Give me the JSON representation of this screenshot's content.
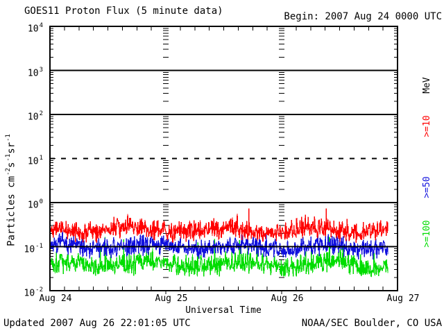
{
  "header": {
    "title": "GOES11 Proton Flux (5 minute data)",
    "begin": "Begin: 2007 Aug 24 0000 UTC"
  },
  "footer": {
    "updated": "Updated 2007 Aug 26 22:01:05 UTC",
    "source": "NOAA/SEC Boulder, CO USA"
  },
  "chart_data": {
    "type": "line",
    "title": "GOES11 Proton Flux (5 minute data)",
    "xlabel": "Universal Time",
    "ylabel": "Particles cm-2s-1sr-1",
    "ylabel_segments": [
      {
        "t": "Particles cm"
      },
      {
        "t": "-2",
        "sup": true
      },
      {
        "t": "s"
      },
      {
        "t": "-1",
        "sup": true
      },
      {
        "t": "sr"
      },
      {
        "t": "-1",
        "sup": true
      }
    ],
    "x_start": "2007 Aug 24 0000 UTC",
    "x_end": "2007 Aug 27 0000 UTC",
    "x_tick_labels": [
      "Aug 24",
      "Aug 25",
      "Aug 26",
      "Aug 27"
    ],
    "x_minor_tick_hours": 3,
    "sample_interval_minutes": 5,
    "data_end": "2007 Aug 26 2200 UTC",
    "y_scale": "log",
    "ylim": [
      0.01,
      10000
    ],
    "y_tick_exponents": [
      4,
      3,
      2,
      1,
      0,
      -1,
      -2
    ],
    "grid": {
      "solid_at": [
        1000,
        100,
        1,
        0.1
      ],
      "dashed_at": [
        10
      ]
    },
    "legend": {
      "title": "MeV",
      "position": "right",
      "entries": [
        {
          "label": ">=10",
          "color": "#ff0000"
        },
        {
          "label": ">=50",
          "color": "#1111dd"
        },
        {
          "label": ">=100",
          "color": "#00dd00"
        }
      ]
    },
    "series": [
      {
        "name": ">=10 MeV protons",
        "color": "#ff0000",
        "approx_median": 0.23,
        "approx_range": [
          0.12,
          0.45
        ],
        "approx_peak": 0.7,
        "gen": {
          "log10_base": -0.63,
          "log10_jitter": 0.27,
          "spike_prob": 0.05,
          "spike_log10_max": 0.35,
          "log10_clamp": [
            -0.95,
            -0.13
          ],
          "seed": 42
        }
      },
      {
        "name": ">=50 MeV protons",
        "color": "#1111dd",
        "approx_median": 0.1,
        "approx_range": [
          0.05,
          0.2
        ],
        "approx_peak": 0.28,
        "gen": {
          "log10_base": -1.0,
          "log10_jitter": 0.27,
          "spike_prob": 0.04,
          "spike_log10_max": 0.3,
          "log10_clamp": [
            -1.33,
            -0.55
          ],
          "seed": 7
        }
      },
      {
        "name": ">=100 MeV protons",
        "color": "#00dd00",
        "approx_median": 0.04,
        "approx_range": [
          0.021,
          0.09
        ],
        "approx_peak": 0.16,
        "gen": {
          "log10_base": -1.4,
          "log10_jitter": 0.3,
          "spike_prob": 0.05,
          "spike_log10_max": 0.55,
          "log10_clamp": [
            -1.675,
            -0.78
          ],
          "seed": 1337
        }
      }
    ]
  }
}
